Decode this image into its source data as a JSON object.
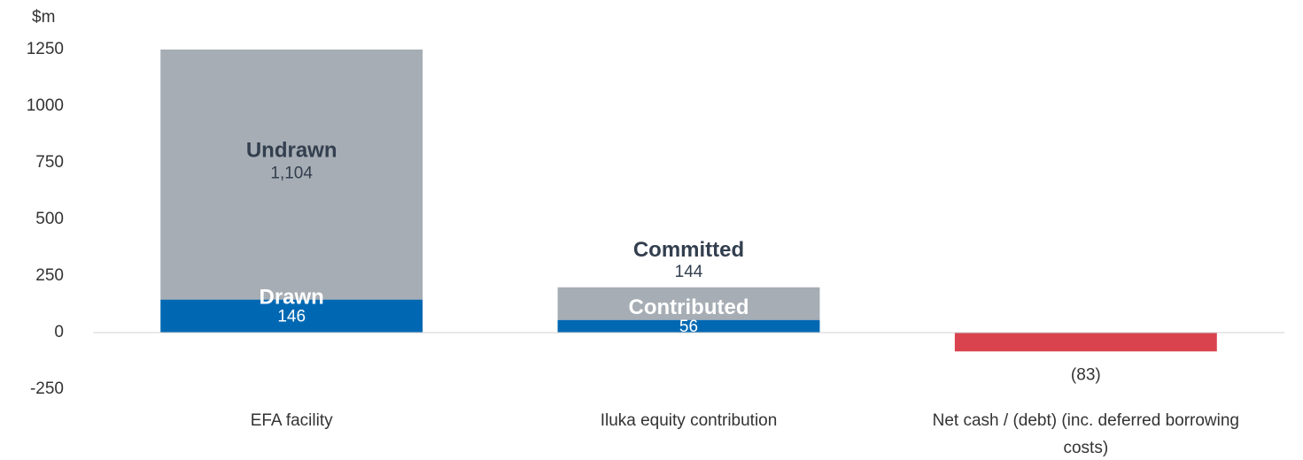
{
  "chart_data": {
    "type": "stacked-bar",
    "y_label": "$m",
    "categories": [
      "EFA facility",
      "Iluka equity contribution",
      "Net cash / (debt) (inc. deferred borrowing costs)"
    ],
    "series": [
      {
        "color": "#0068b3",
        "values": [
          146,
          56,
          null
        ],
        "labels": [
          "Drawn",
          "Contributed",
          null
        ]
      },
      {
        "color": "#a6adb4",
        "values": [
          1104,
          144,
          null
        ],
        "labels": [
          "Undrawn",
          "Committed",
          null
        ],
        "value_labels": [
          "1,104",
          "144",
          null
        ]
      },
      {
        "color": "#d9434e",
        "values": [
          null,
          null,
          -83
        ],
        "value_labels": [
          null,
          null,
          "(83)"
        ]
      }
    ],
    "ylim": [
      -250,
      1250
    ],
    "yticks": [
      -250,
      0,
      250,
      500,
      750,
      1000,
      1250
    ],
    "grid": false
  }
}
